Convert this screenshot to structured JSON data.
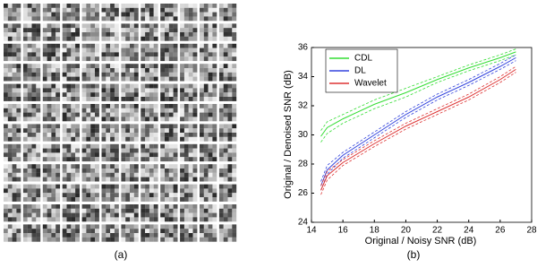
{
  "captions": [
    "(a)",
    "(b)"
  ],
  "chart_data": {
    "type": "line",
    "xlabel": "Original / Noisy SNR (dB)",
    "ylabel": "Original / Denoised SNR (dB)",
    "x": [
      14.6,
      15,
      16,
      18,
      20,
      22,
      24,
      26,
      27
    ],
    "series": [
      {
        "name": "CDL",
        "color": "#33dd33",
        "values": [
          29.9,
          30.5,
          31.1,
          32.1,
          32.9,
          33.8,
          34.6,
          35.3,
          35.7
        ],
        "error": [
          0.4,
          0.4,
          0.3,
          0.3,
          0.3,
          0.2,
          0.2,
          0.2,
          0.2
        ]
      },
      {
        "name": "DL",
        "color": "#3344dd",
        "values": [
          26.5,
          27.6,
          28.6,
          30.0,
          31.4,
          32.6,
          33.6,
          34.7,
          35.3
        ],
        "error": [
          0.3,
          0.3,
          0.2,
          0.2,
          0.2,
          0.2,
          0.2,
          0.2,
          0.2
        ]
      },
      {
        "name": "Wavelet",
        "color": "#dd3333",
        "values": [
          26.2,
          27.2,
          28.1,
          29.4,
          30.6,
          31.6,
          32.6,
          33.8,
          34.5
        ],
        "error": [
          0.3,
          0.3,
          0.2,
          0.2,
          0.2,
          0.2,
          0.2,
          0.2,
          0.2
        ]
      }
    ],
    "xlim": [
      14,
      28
    ],
    "xticks": [
      14,
      16,
      18,
      20,
      22,
      24,
      26,
      28
    ],
    "ylim": [
      24,
      36
    ],
    "yticks": [
      24,
      26,
      28,
      30,
      32,
      34,
      36
    ],
    "grid": false,
    "legend": "upper left"
  }
}
